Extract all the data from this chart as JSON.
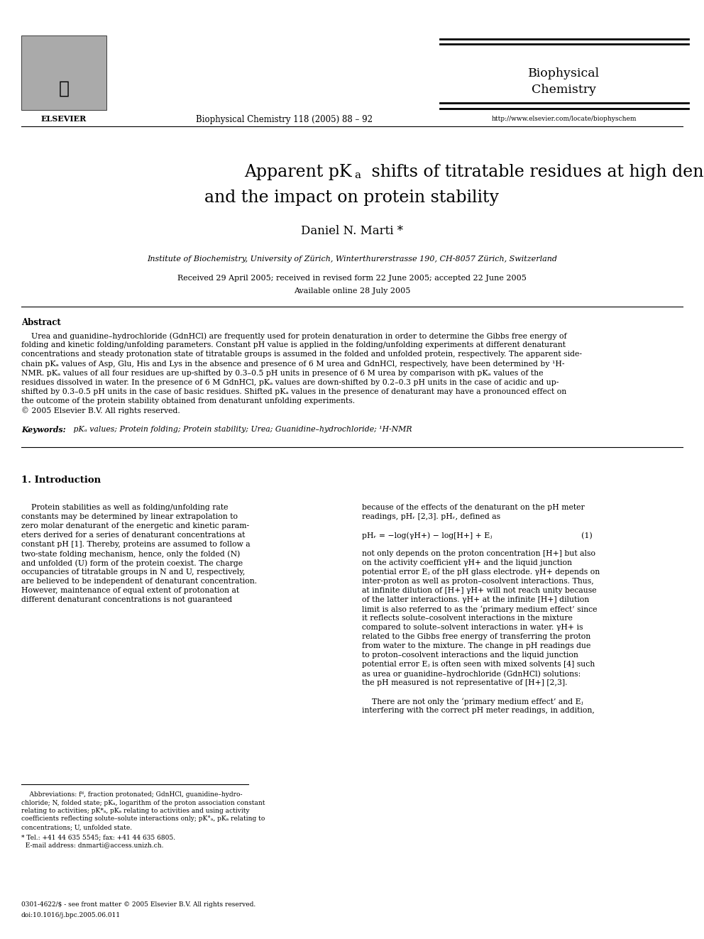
{
  "background_color": "#ffffff",
  "page_width": 9.92,
  "page_height": 13.23,
  "dpi": 100,
  "header": {
    "journal_center": "Biophysical Chemistry 118 (2005) 88 – 92",
    "journal_name": "Biophysical\nChemistry",
    "journal_url": "http://www.elsevier.com/locate/biophyschem"
  },
  "title_line1a": "Apparent pK",
  "title_sub": "a",
  "title_line1b": " shifts of titratable residues at high denaturant concentration",
  "title_line2": "and the impact on protein stability",
  "author": "Daniel N. Marti *",
  "affiliation": "Institute of Biochemistry, University of Zürich, Winterthurerstrasse 190, CH-8057 Zürich, Switzerland",
  "dates": "Received 29 April 2005; received in revised form 22 June 2005; accepted 22 June 2005",
  "available": "Available online 28 July 2005",
  "abstract_title": "Abstract",
  "abstract_body": "    Urea and guanidine–hydrochloride (GdnHCl) are frequently used for protein denaturation in order to determine the Gibbs free energy of\nfolding and kinetic folding/unfolding parameters. Constant pH value is applied in the folding/unfolding experiments at different denaturant\nconcentrations and steady protonation state of titratable groups is assumed in the folded and unfolded protein, respectively. The apparent side-\nchain pKₐ values of Asp, Glu, His and Lys in the absence and presence of 6 M urea and GdnHCl, respectively, have been determined by ¹H-\nNMR. pKₐ values of all four residues are up-shifted by 0.3–0.5 pH units in presence of 6 M urea by comparison with pKₐ values of the\nresidues dissolved in water. In the presence of 6 M GdnHCl, pKₐ values are down-shifted by 0.2–0.3 pH units in the case of acidic and up-\nshifted by 0.3–0.5 pH units in the case of basic residues. Shifted pKₐ values in the presence of denaturant may have a pronounced effect on\nthe outcome of the protein stability obtained from denaturant unfolding experiments.\n© 2005 Elsevier B.V. All rights reserved.",
  "keywords_italic": "Keywords:",
  "keywords_rest": " pKₐ values; Protein folding; Protein stability; Urea; Guanidine–hydrochloride; ¹H-NMR",
  "section1_title": "1. Introduction",
  "col1_lines": [
    "    Protein stabilities as well as folding/unfolding rate",
    "constants may be determined by linear extrapolation to",
    "zero molar denaturant of the energetic and kinetic param-",
    "eters derived for a series of denaturant concentrations at",
    "constant pH [1]. Thereby, proteins are assumed to follow a",
    "two-state folding mechanism, hence, only the folded (N)",
    "and unfolded (U) form of the protein coexist. The charge",
    "occupancies of titratable groups in N and U, respectively,",
    "are believed to be independent of denaturant concentration.",
    "However, maintenance of equal extent of protonation at",
    "different denaturant concentrations is not guaranteed"
  ],
  "col2_lines": [
    "because of the effects of the denaturant on the pH meter",
    "readings, pHᵣ [2,3]. pHᵣ, defined as",
    "",
    "pHᵣ = −log(γH+) − log[H+] + Eⱼ                                    (1)",
    "",
    "not only depends on the proton concentration [H+] but also",
    "on the activity coefficient γH+ and the liquid junction",
    "potential error Eⱼ of the pH glass electrode. γH+ depends on",
    "inter-proton as well as proton–cosolvent interactions. Thus,",
    "at infinite dilution of [H+] γH+ will not reach unity because",
    "of the latter interactions. γH+ at the infinite [H+] dilution",
    "limit is also referred to as the ‘primary medium effect’ since",
    "it reflects solute–cosolvent interactions in the mixture",
    "compared to solute–solvent interactions in water. γH+ is",
    "related to the Gibbs free energy of transferring the proton",
    "from water to the mixture. The change in pH readings due",
    "to proton–cosolvent interactions and the liquid junction",
    "potential error Eⱼ is often seen with mixed solvents [4] such",
    "as urea or guanidine–hydrochloride (GdnHCl) solutions:",
    "the pH measured is not representative of [H+] [2,3].",
    "",
    "    There are not only the ‘primary medium effect’ and Eⱼ",
    "interfering with the correct pH meter readings, in addition,"
  ],
  "fn_abbrev_lines": [
    "    Abbreviations: fᵈ, fraction protonated; GdnHCl, guanidine–hydro-",
    "chloride; N, folded state; pKₐ, logarithm of the proton association constant",
    "relating to activities; pK*ₐ, pKₐ relating to activities and using activity",
    "coefficients reflecting solute–solute interactions only; pK°ₐ, pKₐ relating to",
    "concentrations; U, unfolded state."
  ],
  "fn_star_lines": [
    "* Tel.: +41 44 635 5545; fax: +41 44 635 6805.",
    "  E-mail address: dnmarti@access.unizh.ch."
  ],
  "footer1": "0301-4622/$ - see front matter © 2005 Elsevier B.V. All rights reserved.",
  "footer2": "doi:10.1016/j.bpc.2005.06.011"
}
